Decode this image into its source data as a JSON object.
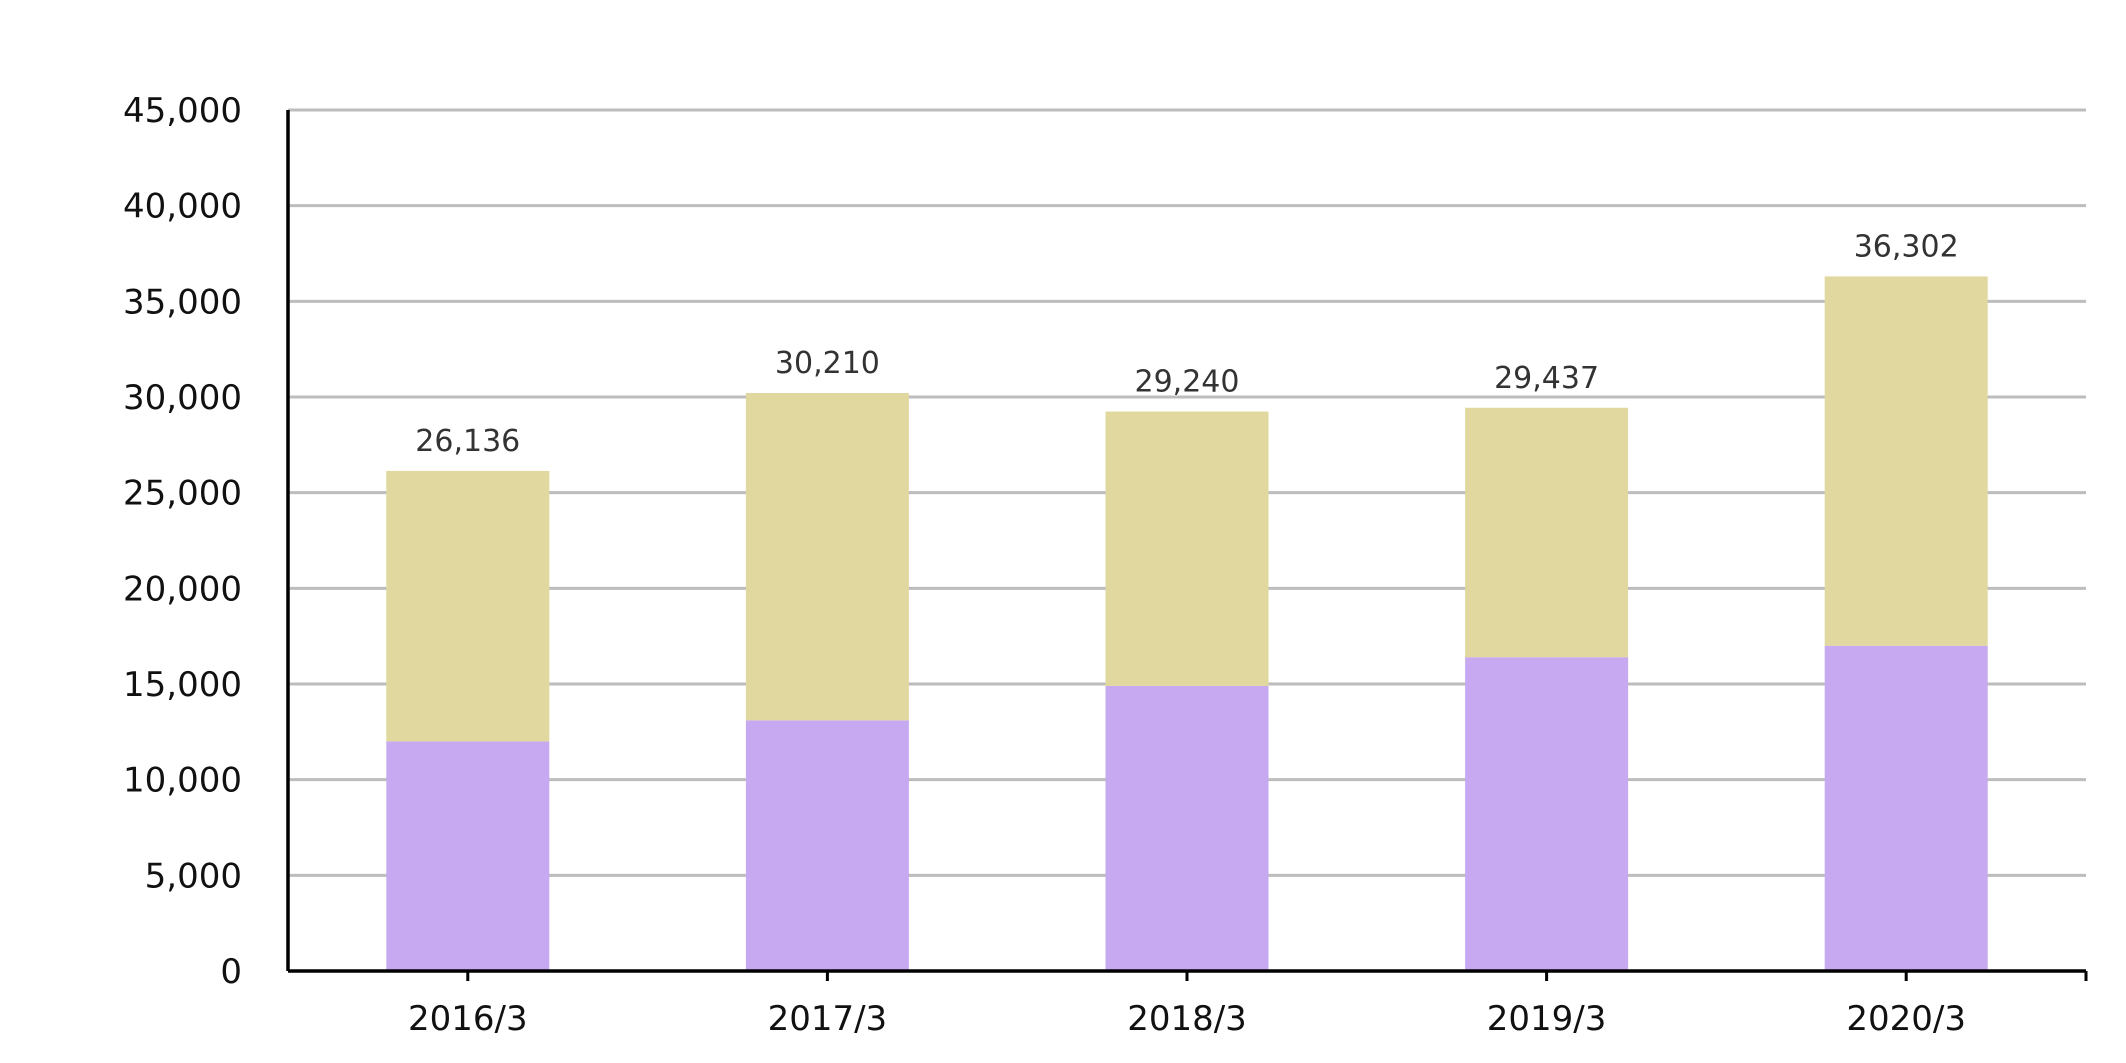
{
  "chart_data": {
    "type": "bar",
    "stacked": true,
    "categories": [
      "2016/3",
      "2017/3",
      "2018/3",
      "2019/3",
      "2020/3"
    ],
    "series": [
      {
        "color": "#c6a9f0",
        "values": [
          12000,
          13100,
          14900,
          16400,
          17000
        ]
      },
      {
        "color": "#e0d89e",
        "values": [
          14136,
          17110,
          14340,
          13037,
          19302
        ]
      }
    ],
    "totals": [
      26136,
      30210,
      29240,
      29437,
      36302
    ],
    "total_labels": [
      "26,136",
      "30,210",
      "29,240",
      "29,437",
      "36,302"
    ],
    "y_ticks": [
      0,
      5000,
      10000,
      15000,
      20000,
      25000,
      30000,
      35000,
      40000,
      45000
    ],
    "y_tick_labels": [
      "0",
      "5,000",
      "10,000",
      "15,000",
      "20,000",
      "25,000",
      "30,000",
      "35,000",
      "40,000",
      "45,000"
    ],
    "ylim": [
      0,
      45000
    ],
    "grid": true,
    "title": "",
    "xlabel": "",
    "ylabel": ""
  }
}
